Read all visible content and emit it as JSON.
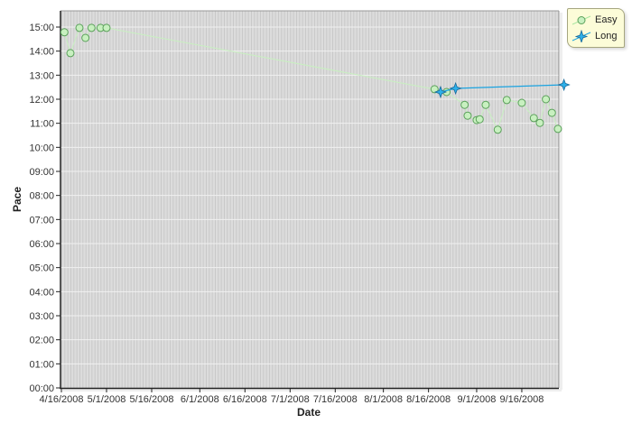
{
  "chart_data": {
    "type": "line",
    "title": "",
    "xlabel": "Date",
    "ylabel": "Pace",
    "x_ticks": [
      "4/16/2008",
      "5/1/2008",
      "5/16/2008",
      "6/1/2008",
      "6/16/2008",
      "7/1/2008",
      "7/16/2008",
      "8/1/2008",
      "8/16/2008",
      "9/1/2008",
      "9/16/2008"
    ],
    "y_ticks": [
      "00:00",
      "01:00",
      "02:00",
      "03:00",
      "04:00",
      "05:00",
      "06:00",
      "07:00",
      "08:00",
      "09:00",
      "10:00",
      "11:00",
      "12:00",
      "13:00",
      "14:00",
      "15:00"
    ],
    "ylim": [
      "00:00",
      "15:40"
    ],
    "xlim": [
      "4/16/2008",
      "9/30/2008"
    ],
    "grid": true,
    "legend_position": "top-right",
    "series": [
      {
        "name": "Easy",
        "color": "#a8e6a0",
        "marker": "circle",
        "points": [
          {
            "x": "4/17/2008",
            "y": "14:47"
          },
          {
            "x": "4/19/2008",
            "y": "13:55"
          },
          {
            "x": "4/22/2008",
            "y": "14:58"
          },
          {
            "x": "4/24/2008",
            "y": "14:33"
          },
          {
            "x": "4/26/2008",
            "y": "14:58"
          },
          {
            "x": "4/29/2008",
            "y": "14:58"
          },
          {
            "x": "5/1/2008",
            "y": "14:58"
          },
          {
            "x": "8/18/2008",
            "y": "12:25"
          },
          {
            "x": "8/22/2008",
            "y": "12:18"
          },
          {
            "x": "8/28/2008",
            "y": "11:46"
          },
          {
            "x": "8/29/2008",
            "y": "11:19"
          },
          {
            "x": "9/1/2008",
            "y": "11:08"
          },
          {
            "x": "9/2/2008",
            "y": "11:10"
          },
          {
            "x": "9/4/2008",
            "y": "11:46"
          },
          {
            "x": "9/8/2008",
            "y": "10:44"
          },
          {
            "x": "9/11/2008",
            "y": "11:58"
          },
          {
            "x": "9/16/2008",
            "y": "11:51"
          },
          {
            "x": "9/20/2008",
            "y": "11:13"
          },
          {
            "x": "9/22/2008",
            "y": "11:01"
          },
          {
            "x": "9/24/2008",
            "y": "12:00"
          },
          {
            "x": "9/26/2008",
            "y": "11:26"
          },
          {
            "x": "9/28/2008",
            "y": "10:46"
          }
        ]
      },
      {
        "name": "Long",
        "color": "#1aa3e0",
        "marker": "star",
        "points": [
          {
            "x": "8/20/2008",
            "y": "12:18"
          },
          {
            "x": "8/25/2008",
            "y": "12:27"
          },
          {
            "x": "9/30/2008",
            "y": "12:36"
          }
        ]
      }
    ]
  },
  "legend": {
    "items": [
      {
        "label": "Easy"
      },
      {
        "label": "Long"
      }
    ]
  }
}
